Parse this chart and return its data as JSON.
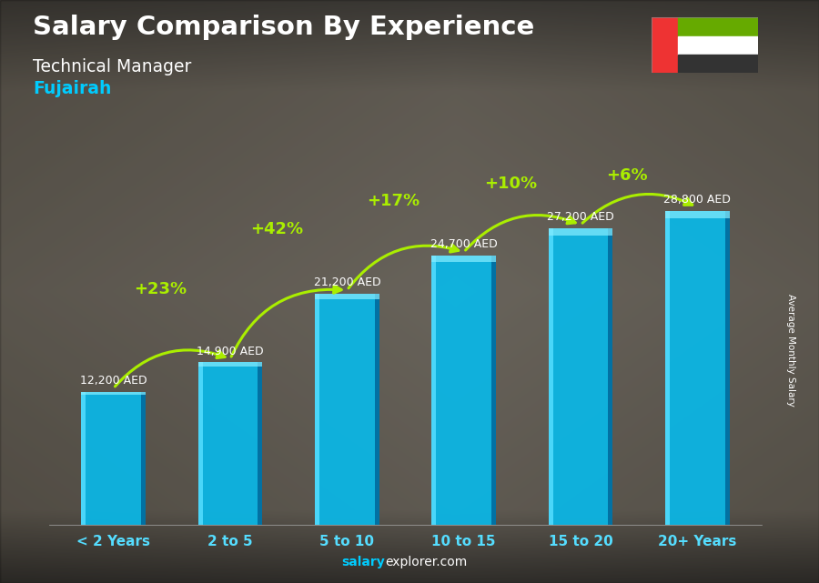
{
  "title_line1": "Salary Comparison By Experience",
  "title_line2": "Technical Manager",
  "title_line3": "Fujairah",
  "categories": [
    "< 2 Years",
    "2 to 5",
    "5 to 10",
    "10 to 15",
    "15 to 20",
    "20+ Years"
  ],
  "values": [
    12200,
    14900,
    21200,
    24700,
    27200,
    28800
  ],
  "value_labels": [
    "12,200 AED",
    "14,900 AED",
    "21,200 AED",
    "24,700 AED",
    "27,200 AED",
    "28,800 AED"
  ],
  "pct_labels": [
    "+23%",
    "+42%",
    "+17%",
    "+10%",
    "+6%"
  ],
  "bar_color": "#00aadd",
  "bar_highlight": "#33ddff",
  "bar_shadow": "#007799",
  "bg_color": "#555555",
  "text_color_white": "#ffffff",
  "text_color_cyan": "#00ccff",
  "text_color_green": "#aaee00",
  "footer_salary": "salary",
  "footer_rest": "explorer.com",
  "ylabel_text": "Average Monthly Salary",
  "max_value": 31000,
  "bar_width": 0.55,
  "flag_red": "#ee3333",
  "flag_green": "#66aa00",
  "flag_white": "#ffffff",
  "flag_black": "#333333"
}
